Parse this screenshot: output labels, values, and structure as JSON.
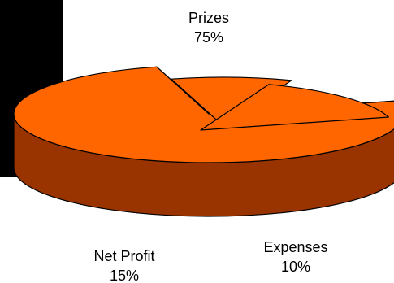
{
  "chart_data": {
    "type": "pie",
    "style": "3d-exploded",
    "slices": [
      {
        "label": "Prizes",
        "value": 75,
        "value_label": "75%"
      },
      {
        "label": "Expenses",
        "value": 10,
        "value_label": "10%"
      },
      {
        "label": "Net Profit",
        "value": 15,
        "value_label": "15%"
      }
    ],
    "colors": {
      "top": "#ff6600",
      "side": "#993300",
      "outline": "#000000",
      "panel": "#000000"
    }
  }
}
